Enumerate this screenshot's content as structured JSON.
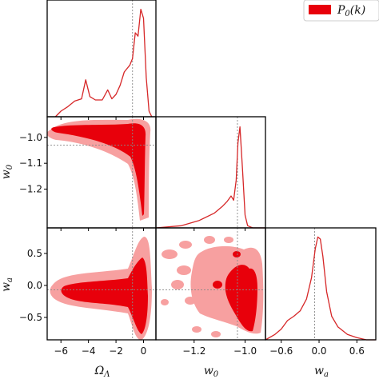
{
  "chart_data": {
    "type": "corner",
    "legend": {
      "label": "P_0(k)",
      "placement": "top-right",
      "color": "#e8000b"
    },
    "colors": {
      "line": "#d62728",
      "fill_inner": "#e8000b",
      "fill_outer": "#f7a0a0",
      "truth": "#888888"
    },
    "parameters": [
      {
        "name": "Omega_Lambda",
        "label": "Ω_Λ",
        "range": [
          -7,
          0.9
        ],
        "ticks": [
          -6,
          -4,
          -2,
          0
        ],
        "tick_labels": [
          "−6",
          "−4",
          "−2",
          "0"
        ],
        "truth": -0.8
      },
      {
        "name": "w0",
        "label": "w_0",
        "range": [
          -1.35,
          -0.92
        ],
        "ticks": [
          -1.2,
          -1.0
        ],
        "tick_labels": [
          "−1.2",
          "−1.0"
        ],
        "y_ticks": [
          -1.0,
          -1.1,
          -1.2
        ],
        "y_tick_labels": [
          "−1.0",
          "−1.1",
          "−1.2"
        ],
        "truth": -1.03
      },
      {
        "name": "wa",
        "label": "w_a",
        "range": [
          -0.85,
          0.9
        ],
        "ticks": [
          -0.6,
          0.0,
          0.6
        ],
        "tick_labels": [
          "−0.6",
          "0.0",
          "0.6"
        ],
        "y_ticks": [
          0.5,
          0.0,
          -0.5
        ],
        "y_tick_labels": [
          "0.5",
          "0.0",
          "−0.5"
        ],
        "truth": -0.07
      }
    ],
    "marginals": [
      {
        "parameter": "Omega_Lambda",
        "x": [
          -6.4,
          -6.0,
          -5.5,
          -5.0,
          -4.5,
          -4.2,
          -3.9,
          -3.5,
          -3.0,
          -2.6,
          -2.3,
          -2.0,
          -1.7,
          -1.4,
          -1.0,
          -0.8,
          -0.6,
          -0.4,
          -0.2,
          0.0,
          0.2,
          0.4,
          0.6
        ],
        "y": [
          0.0,
          0.05,
          0.09,
          0.14,
          0.16,
          0.33,
          0.18,
          0.15,
          0.15,
          0.24,
          0.16,
          0.2,
          0.28,
          0.4,
          0.46,
          0.52,
          0.75,
          0.72,
          0.96,
          0.88,
          0.35,
          0.05,
          0.0
        ]
      },
      {
        "parameter": "w0",
        "x": [
          -1.35,
          -1.25,
          -1.18,
          -1.12,
          -1.09,
          -1.07,
          -1.055,
          -1.045,
          -1.035,
          -1.028,
          -1.02,
          -1.01,
          -1.0,
          -0.99,
          -0.97,
          -0.92
        ],
        "y": [
          0.0,
          0.02,
          0.07,
          0.14,
          0.2,
          0.25,
          0.3,
          0.26,
          0.45,
          0.8,
          0.95,
          0.55,
          0.12,
          0.02,
          0.0,
          0.0
        ]
      },
      {
        "parameter": "wa",
        "x": [
          -0.85,
          -0.7,
          -0.6,
          -0.5,
          -0.4,
          -0.3,
          -0.2,
          -0.12,
          -0.06,
          -0.02,
          0.02,
          0.06,
          0.12,
          0.2,
          0.3,
          0.45,
          0.6,
          0.75,
          0.9
        ],
        "y": [
          0.0,
          0.05,
          0.1,
          0.18,
          0.22,
          0.27,
          0.38,
          0.58,
          0.85,
          0.96,
          0.94,
          0.78,
          0.45,
          0.22,
          0.12,
          0.05,
          0.02,
          0.0,
          0.0
        ]
      }
    ]
  }
}
